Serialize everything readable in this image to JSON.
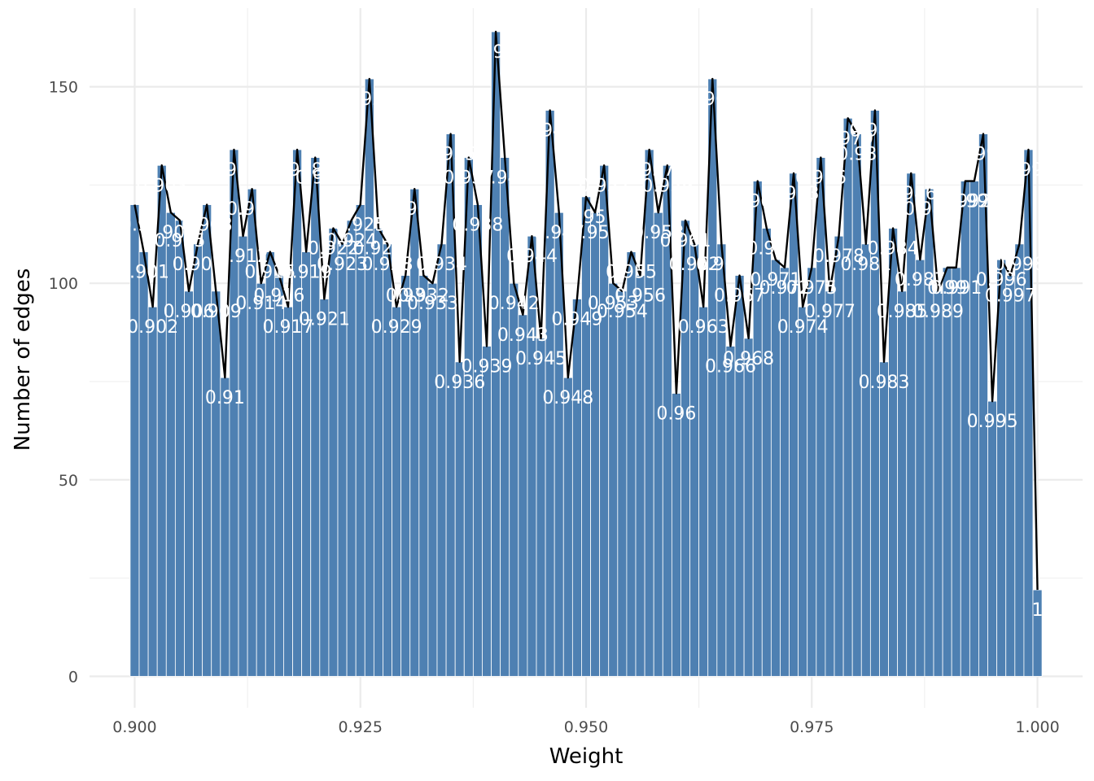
{
  "chart_data": {
    "type": "bar",
    "title": "",
    "xlabel": "Weight",
    "ylabel": "Number of edges",
    "xlim": [
      0.895,
      1.005
    ],
    "ylim": [
      -8,
      170
    ],
    "x_ticks": [
      0.9,
      0.925,
      0.95,
      0.975,
      1.0
    ],
    "x_tick_labels": [
      "0.900",
      "0.925",
      "0.950",
      "0.975",
      "1.000"
    ],
    "y_ticks": [
      0,
      50,
      100,
      150
    ],
    "y_tick_labels": [
      "0",
      "50",
      "100",
      "150"
    ],
    "grid": true,
    "legend": "none",
    "bar_color": "#4E80B2",
    "line_color": "#000000",
    "x": [
      0.9,
      0.901,
      0.902,
      0.903,
      0.904,
      0.905,
      0.906,
      0.907,
      0.908,
      0.909,
      0.91,
      0.911,
      0.912,
      0.913,
      0.914,
      0.915,
      0.916,
      0.917,
      0.918,
      0.919,
      0.92,
      0.921,
      0.922,
      0.923,
      0.924,
      0.925,
      0.926,
      0.927,
      0.928,
      0.929,
      0.93,
      0.931,
      0.932,
      0.933,
      0.934,
      0.935,
      0.936,
      0.937,
      0.938,
      0.939,
      0.94,
      0.941,
      0.942,
      0.943,
      0.944,
      0.945,
      0.946,
      0.947,
      0.948,
      0.949,
      0.95,
      0.951,
      0.952,
      0.953,
      0.954,
      0.955,
      0.956,
      0.957,
      0.958,
      0.959,
      0.96,
      0.961,
      0.962,
      0.963,
      0.964,
      0.965,
      0.966,
      0.967,
      0.968,
      0.969,
      0.97,
      0.971,
      0.972,
      0.973,
      0.974,
      0.975,
      0.976,
      0.977,
      0.978,
      0.979,
      0.98,
      0.981,
      0.982,
      0.983,
      0.984,
      0.985,
      0.986,
      0.987,
      0.988,
      0.989,
      0.99,
      0.991,
      0.992,
      0.993,
      0.994,
      0.995,
      0.996,
      0.997,
      0.998,
      0.999,
      1.0
    ],
    "values": [
      120,
      108,
      94,
      130,
      118,
      116,
      98,
      110,
      120,
      98,
      76,
      134,
      112,
      124,
      100,
      108,
      102,
      94,
      134,
      108,
      132,
      96,
      114,
      110,
      116,
      120,
      152,
      114,
      110,
      94,
      102,
      124,
      102,
      100,
      110,
      138,
      80,
      132,
      120,
      84,
      164,
      132,
      100,
      92,
      112,
      86,
      144,
      118,
      76,
      96,
      122,
      118,
      130,
      100,
      98,
      108,
      102,
      134,
      118,
      130,
      72,
      116,
      110,
      94,
      152,
      110,
      84,
      102,
      86,
      126,
      114,
      106,
      104,
      128,
      94,
      104,
      132,
      98,
      112,
      142,
      138,
      110,
      144,
      80,
      114,
      98,
      128,
      106,
      124,
      98,
      104,
      104,
      126,
      126,
      138,
      70,
      106,
      102,
      110,
      134,
      22
    ],
    "labels": [
      "0.9",
      "0.901",
      "0.902",
      "0.903",
      "0.904",
      "0.905",
      "0.906",
      "0.907",
      "0.908",
      "0.909",
      "0.91",
      "0.911",
      "0.912",
      "0.913",
      "0.914",
      "0.915",
      "0.916",
      "0.917",
      "0.918",
      "0.919",
      "0.92",
      "0.921",
      "0.922",
      "0.923",
      "0.924",
      "0.925",
      "0.926",
      "0.927",
      "0.928",
      "0.929",
      "0.93",
      "0.931",
      "0.932",
      "0.933",
      "0.934",
      "0.935",
      "0.936",
      "0.937",
      "0.938",
      "0.939",
      "0.94",
      "0.941",
      "0.942",
      "0.943",
      "0.944",
      "0.945",
      "0.946",
      "0.947",
      "0.948",
      "0.949",
      "0.95",
      "0.951",
      "0.952",
      "0.953",
      "0.954",
      "0.955",
      "0.956",
      "0.957",
      "0.958",
      "0.959",
      "0.96",
      "0.961",
      "0.962",
      "0.963",
      "0.964",
      "0.965",
      "0.966",
      "0.967",
      "0.968",
      "0.969",
      "0.97",
      "0.971",
      "0.972",
      "0.973",
      "0.974",
      "0.975",
      "0.976",
      "0.977",
      "0.978",
      "0.979",
      "0.98",
      "0.981",
      "0.982",
      "0.983",
      "0.984",
      "0.985",
      "0.986",
      "0.987",
      "0.988",
      "0.989",
      "0.99",
      "0.991",
      "0.992",
      "0.993",
      "0.994",
      "0.995",
      "0.996",
      "0.997",
      "0.998",
      "0.999",
      "1"
    ]
  }
}
